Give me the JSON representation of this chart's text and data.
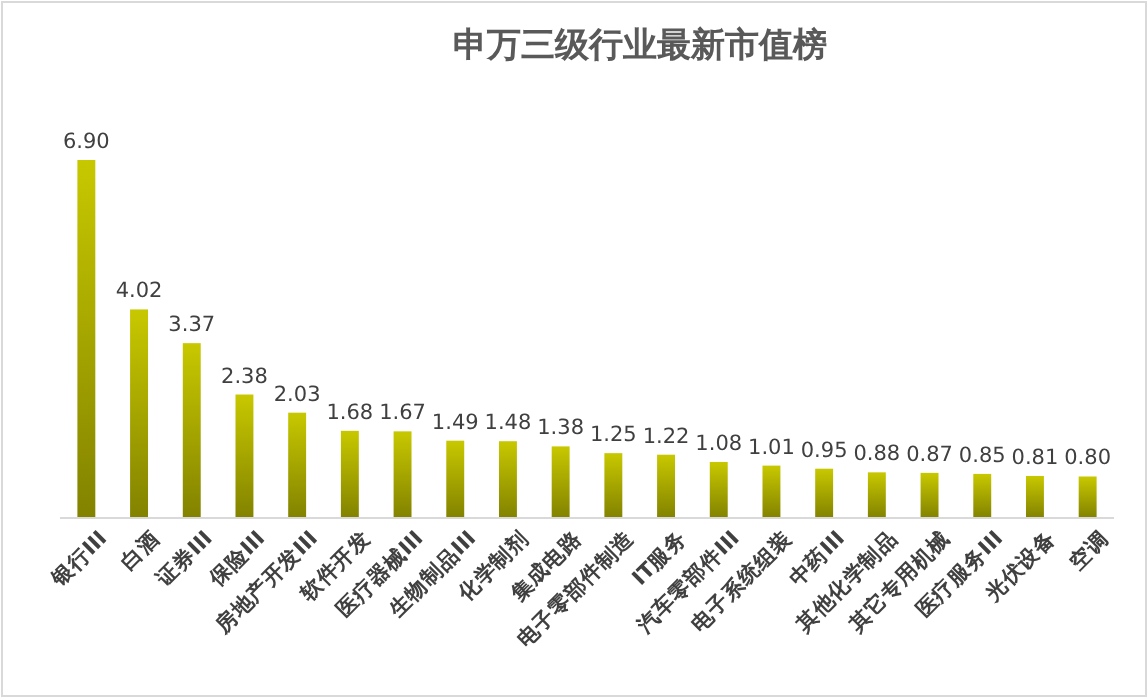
{
  "chart_data": {
    "type": "bar",
    "title": "申万三级行业最新市值榜",
    "categories": [
      "银行III",
      "白酒",
      "证券III",
      "保险III",
      "房地产开发III",
      "软件开发",
      "医疗器械III",
      "生物制品III",
      "化学制剂",
      "集成电路",
      "电子零部件制造",
      "IT服务",
      "汽车零部件III",
      "电子系统组装",
      "中药III",
      "其他化学制品",
      "其它专用机械",
      "医疗服务III",
      "光伏设备",
      "空调"
    ],
    "values": [
      6.9,
      4.02,
      3.37,
      2.38,
      2.03,
      1.68,
      1.67,
      1.49,
      1.48,
      1.38,
      1.25,
      1.22,
      1.08,
      1.01,
      0.95,
      0.88,
      0.87,
      0.85,
      0.81,
      0.8
    ],
    "value_labels": [
      "6.90",
      "4.02",
      "3.37",
      "2.38",
      "2.03",
      "1.68",
      "1.67",
      "1.49",
      "1.48",
      "1.38",
      "1.25",
      "1.22",
      "1.08",
      "1.01",
      "0.95",
      "0.88",
      "0.87",
      "0.85",
      "0.81",
      "0.80"
    ],
    "color": "#c8c800"
  }
}
